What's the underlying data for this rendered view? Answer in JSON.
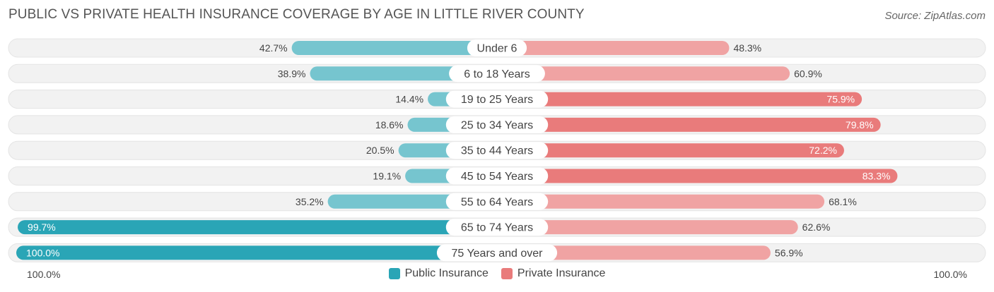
{
  "header": {
    "title": "PUBLIC VS PRIVATE HEALTH INSURANCE COVERAGE BY AGE IN LITTLE RIVER COUNTY",
    "source": "Source: ZipAtlas.com"
  },
  "colors": {
    "public": "#76c5cf",
    "public_strong": "#2aa5b6",
    "private": "#f0a3a3",
    "private_strong": "#e97b7b",
    "track": "#f1f1f1"
  },
  "chart_data": {
    "type": "bar",
    "orientation": "horizontal-diverging",
    "title": "PUBLIC VS PRIVATE HEALTH INSURANCE COVERAGE BY AGE IN LITTLE RIVER COUNTY",
    "categories": [
      "Under 6",
      "6 to 18 Years",
      "19 to 25 Years",
      "25 to 34 Years",
      "35 to 44 Years",
      "45 to 54 Years",
      "55 to 64 Years",
      "65 to 74 Years",
      "75 Years and over"
    ],
    "series": [
      {
        "name": "Public Insurance",
        "side": "left",
        "values": [
          42.7,
          38.9,
          14.4,
          18.6,
          20.5,
          19.1,
          35.2,
          99.7,
          100.0
        ],
        "labels": [
          "42.7%",
          "38.9%",
          "14.4%",
          "18.6%",
          "20.5%",
          "19.1%",
          "35.2%",
          "99.7%",
          "100.0%"
        ]
      },
      {
        "name": "Private Insurance",
        "side": "right",
        "values": [
          48.3,
          60.9,
          75.9,
          79.8,
          72.2,
          83.3,
          68.1,
          62.6,
          56.9
        ],
        "labels": [
          "48.3%",
          "60.9%",
          "75.9%",
          "79.8%",
          "72.2%",
          "83.3%",
          "68.1%",
          "62.6%",
          "56.9%"
        ]
      }
    ],
    "xlim": [
      0,
      100
    ],
    "axis_left_label": "100.0%",
    "axis_right_label": "100.0%",
    "legend": [
      "Public Insurance",
      "Private Insurance"
    ]
  }
}
